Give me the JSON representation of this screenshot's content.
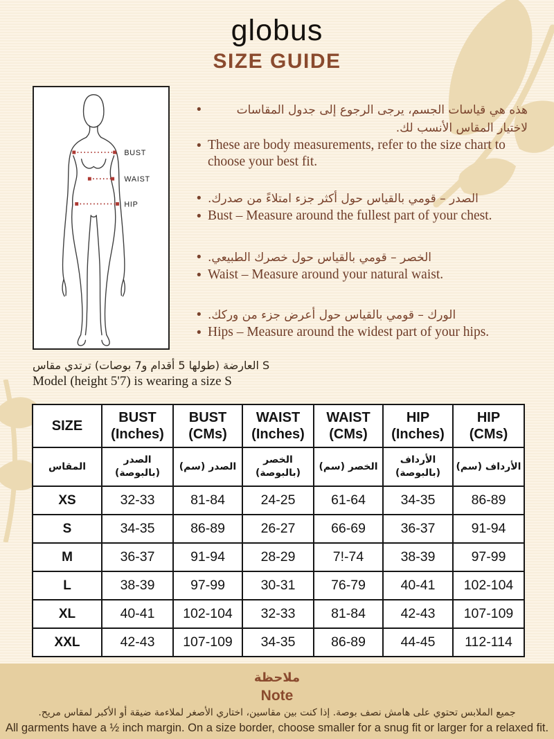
{
  "header": {
    "logo": "globus",
    "title": "SIZE GUIDE"
  },
  "figure": {
    "labels": {
      "bust": "BUST",
      "waist": "WAIST",
      "hip": "HIP"
    }
  },
  "instructions": [
    {
      "ar": "هذه هي قياسات الجسم، يرجى الرجوع إلى جدول المقاسات لاختيار المقاس الأنسب لك.",
      "en": "These are body measurements, refer to the size chart to choose your best fit."
    },
    {
      "ar": "الصدر – قومي بالقياس حول أكثر جزء امتلاءً من صدرك.",
      "en": "Bust – Measure around the fullest part of your chest."
    },
    {
      "ar": "الخصر – قومي بالقياس حول خصرك الطبيعي.",
      "en": "Waist – Measure around your natural waist."
    },
    {
      "ar": "الورك – قومي بالقياس حول أعرض جزء من وركك.",
      "en": "Hips – Measure around the widest part of your hips."
    }
  ],
  "model_info": {
    "ar": "العارضة (طولها 5 أقدام و7 بوصات) ترتدي مقاس S",
    "en": "Model (height 5'7) is wearing a size S"
  },
  "size_table": {
    "headers_en": [
      "SIZE",
      "BUST\n(Inches)",
      "BUST\n(CMs)",
      "WAIST\n(Inches)",
      "WAIST\n(CMs)",
      "HIP\n(Inches)",
      "HIP\n(CMs)"
    ],
    "headers_ar": [
      "المقاس",
      "الصدر\n(بالبوصة)",
      "الصدر (سم)",
      "الخصر\n(بالبوصة)",
      "الخصر (سم)",
      "الأرداف\n(بالبوصة)",
      "الأرداف (سم)"
    ],
    "rows": [
      {
        "size": "XS",
        "values": [
          "32-33",
          "81-84",
          "24-25",
          "61-64",
          "34-35",
          "86-89"
        ]
      },
      {
        "size": "S",
        "values": [
          "34-35",
          "86-89",
          "26-27",
          "66-69",
          "36-37",
          "91-94"
        ]
      },
      {
        "size": "M",
        "values": [
          "36-37",
          "91-94",
          "28-29",
          "7!-74",
          "38-39",
          "97-99"
        ]
      },
      {
        "size": "L",
        "values": [
          "38-39",
          "97-99",
          "30-31",
          "76-79",
          "40-41",
          "102-104"
        ]
      },
      {
        "size": "XL",
        "values": [
          "40-41",
          "102-104",
          "32-33",
          "81-84",
          "42-43",
          "107-109"
        ]
      },
      {
        "size": "XXL",
        "values": [
          "42-43",
          "107-109",
          "34-35",
          "86-89",
          "44-45",
          "112-114"
        ]
      }
    ]
  },
  "note": {
    "title_ar": "ملاحظة",
    "title_en": "Note",
    "body_ar": "جميع الملابس تحتوي على هامش نصف بوصة. إذا كنت بين مقاسين، اختاري الأصغر لملاءمة ضيقة أو الأكبر لمقاس مريح.",
    "body_en": "All garments have a ½ inch margin. On a size border, choose smaller for a snug fit or larger for a relaxed fit."
  },
  "colors": {
    "background_cream": "#fbf2e1",
    "leaf_tan": "#ecdab3",
    "brand_brown": "#8a4a2e",
    "body_text_brown": "#7a432d",
    "measure_red": "#ad3a34",
    "note_band": "#e6cfa0",
    "table_border": "#161616"
  }
}
